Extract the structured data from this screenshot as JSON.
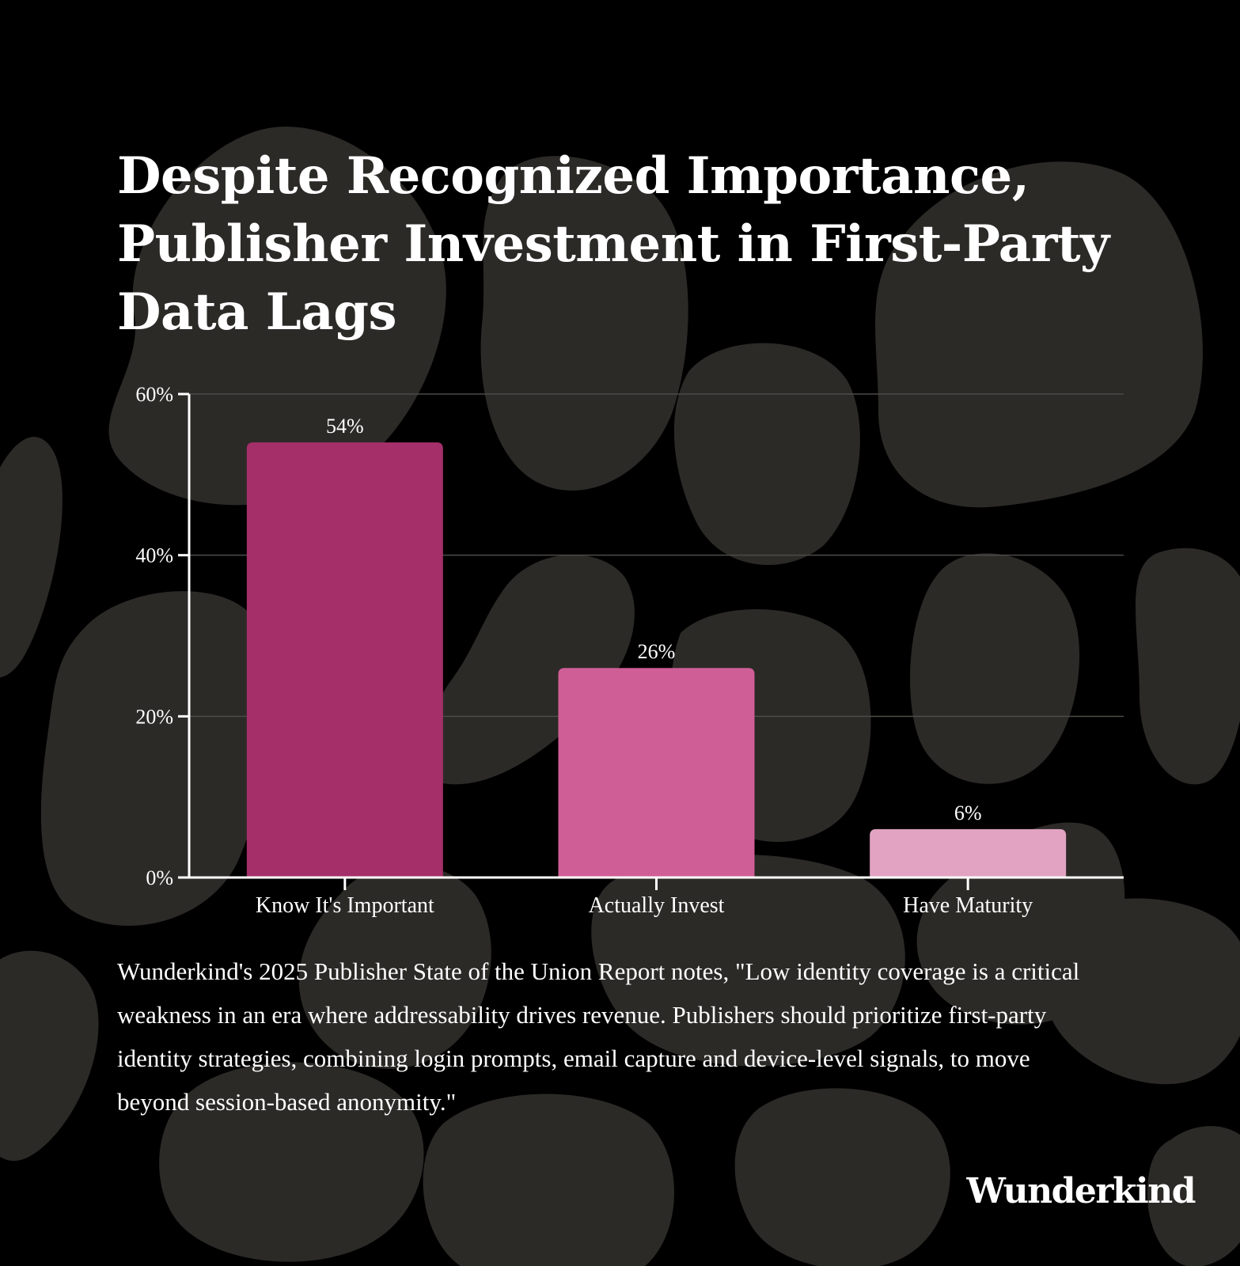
{
  "title": "Despite Recognized Importance, Publisher Investment in First-Party Data Lags",
  "body_text": "Wunderkind's 2025 Publisher State of the Union Report notes, \"Low identity coverage is a critical weakness in an era where addressability drives revenue. Publishers should prioritize first-party identity strategies, combining login prompts, email capture and device-level signals, to move beyond session-based anonymity.\"",
  "brand": {
    "logo_text": "Wunderkind"
  },
  "colors": {
    "background": "#000000",
    "blob": "#2c2a27",
    "text": "#ffffff",
    "gridline": "#4d4b48",
    "axis": "#ffffff",
    "bar_colors": [
      "#a52f69",
      "#d05e96",
      "#e2a3c2"
    ]
  },
  "chart_data": {
    "type": "bar",
    "categories": [
      "Know It's Important",
      "Actually Invest",
      "Have Maturity"
    ],
    "values": [
      54,
      26,
      6
    ],
    "data_labels": [
      "54%",
      "26%",
      "6%"
    ],
    "ylim": [
      0,
      60
    ],
    "yticks": [
      0,
      20,
      40,
      60
    ],
    "ytick_labels": [
      "0%",
      "20%",
      "40%",
      "60%"
    ],
    "grid": true,
    "legend": false
  }
}
